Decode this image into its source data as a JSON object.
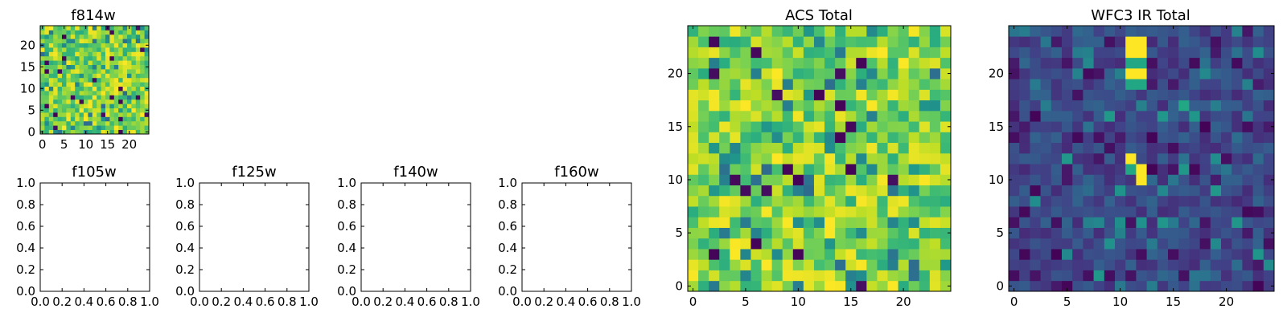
{
  "figure": {
    "background": "#ffffff",
    "colormap": "viridis"
  },
  "chart_data": [
    {
      "id": "f814w",
      "type": "heatmap",
      "title": "f814w",
      "grid_size": 25,
      "pattern": "acs",
      "seed": 11,
      "xticks": [
        "0",
        "5",
        "10",
        "15",
        "20"
      ],
      "yticks": [
        "0",
        "5",
        "10",
        "15",
        "20"
      ],
      "xlim": [
        -0.5,
        24.5
      ],
      "ylim": [
        -0.5,
        24.5
      ]
    },
    {
      "id": "f105w",
      "type": "scatter",
      "title": "f105w",
      "empty": true,
      "xlim": [
        0,
        1
      ],
      "ylim": [
        0,
        1
      ],
      "xticks": [
        "0.0",
        "0.2",
        "0.4",
        "0.6",
        "0.8",
        "1.0"
      ],
      "yticks": [
        "0.0",
        "0.2",
        "0.4",
        "0.6",
        "0.8",
        "1.0"
      ]
    },
    {
      "id": "f125w",
      "type": "scatter",
      "title": "f125w",
      "empty": true,
      "xlim": [
        0,
        1
      ],
      "ylim": [
        0,
        1
      ],
      "xticks": [
        "0.0",
        "0.2",
        "0.4",
        "0.6",
        "0.8",
        "1.0"
      ],
      "yticks": [
        "0.0",
        "0.2",
        "0.4",
        "0.6",
        "0.8",
        "1.0"
      ]
    },
    {
      "id": "f140w",
      "type": "scatter",
      "title": "f140w",
      "empty": true,
      "xlim": [
        0,
        1
      ],
      "ylim": [
        0,
        1
      ],
      "xticks": [
        "0.0",
        "0.2",
        "0.4",
        "0.6",
        "0.8",
        "1.0"
      ],
      "yticks": [
        "0.0",
        "0.2",
        "0.4",
        "0.6",
        "0.8",
        "1.0"
      ]
    },
    {
      "id": "f160w",
      "type": "scatter",
      "title": "f160w",
      "empty": true,
      "xlim": [
        0,
        1
      ],
      "ylim": [
        0,
        1
      ],
      "xticks": [
        "0.0",
        "0.2",
        "0.4",
        "0.6",
        "0.8",
        "1.0"
      ],
      "yticks": [
        "0.0",
        "0.2",
        "0.4",
        "0.6",
        "0.8",
        "1.0"
      ]
    },
    {
      "id": "acs-total",
      "type": "heatmap",
      "title": "ACS Total",
      "grid_size": 25,
      "pattern": "acs",
      "seed": 37,
      "xticks": [
        "0",
        "5",
        "10",
        "15",
        "20"
      ],
      "yticks": [
        "0",
        "5",
        "10",
        "15",
        "20"
      ],
      "xlim": [
        -0.5,
        24.5
      ],
      "ylim": [
        -0.5,
        24.5
      ]
    },
    {
      "id": "wfc3-ir-total",
      "type": "heatmap",
      "title": "WFC3 IR Total",
      "grid_size": 25,
      "pattern": "ir",
      "seed": 5,
      "bright_cells": [
        [
          11,
          23
        ],
        [
          12,
          23
        ],
        [
          11,
          22
        ],
        [
          12,
          22
        ],
        [
          11,
          20
        ],
        [
          12,
          20
        ],
        [
          11,
          12
        ],
        [
          12,
          11
        ],
        [
          12,
          10
        ]
      ],
      "mid_cells": [
        [
          11,
          21
        ],
        [
          12,
          21
        ],
        [
          16,
          17
        ],
        [
          11,
          19
        ],
        [
          12,
          19
        ],
        [
          11,
          11
        ]
      ],
      "xticks": [
        "0",
        "5",
        "10",
        "15",
        "20"
      ],
      "yticks": [
        "0",
        "5",
        "10",
        "15",
        "20"
      ],
      "xlim": [
        -0.5,
        24.5
      ],
      "ylim": [
        -0.5,
        24.5
      ]
    }
  ]
}
